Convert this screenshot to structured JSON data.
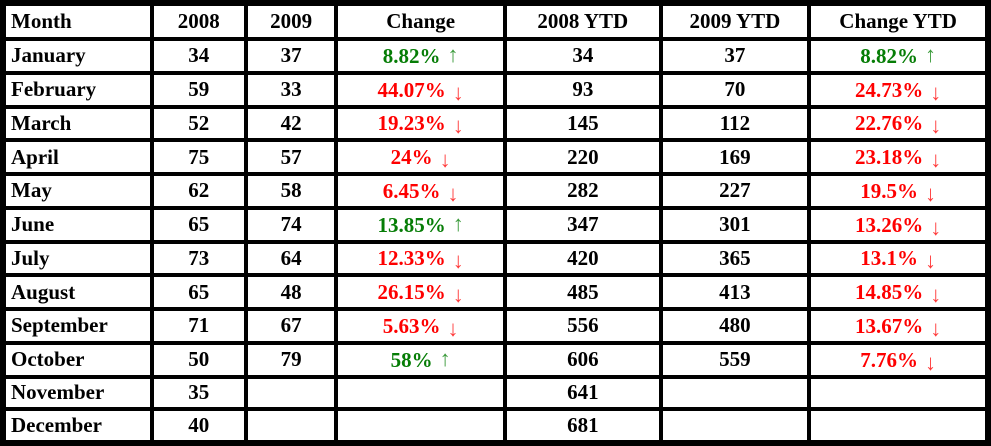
{
  "colors": {
    "border": "#000000",
    "text": "#000000",
    "increase": "#067d06",
    "increase_arrow": "#3c9b3c",
    "decrease": "#fe0000",
    "decrease_arrow": "#ff3b3b"
  },
  "icons": {
    "up_arrow": "↑",
    "down_arrow": "↓"
  },
  "table": {
    "columns": [
      {
        "key": "month",
        "label": "Month"
      },
      {
        "key": "y2008",
        "label": "2008"
      },
      {
        "key": "y2009",
        "label": "2009"
      },
      {
        "key": "change",
        "label": "Change"
      },
      {
        "key": "ytd2008",
        "label": "2008 YTD"
      },
      {
        "key": "ytd2009",
        "label": "2009 YTD"
      },
      {
        "key": "change_ytd",
        "label": "Change YTD"
      }
    ],
    "rows": [
      {
        "month": "January",
        "y2008": "34",
        "y2009": "37",
        "change": {
          "value": "8.82%",
          "direction": "up"
        },
        "ytd2008": "34",
        "ytd2009": "37",
        "change_ytd": {
          "value": "8.82%",
          "direction": "up"
        }
      },
      {
        "month": "February",
        "y2008": "59",
        "y2009": "33",
        "change": {
          "value": "44.07%",
          "direction": "down"
        },
        "ytd2008": "93",
        "ytd2009": "70",
        "change_ytd": {
          "value": "24.73%",
          "direction": "down"
        }
      },
      {
        "month": "March",
        "y2008": "52",
        "y2009": "42",
        "change": {
          "value": "19.23%",
          "direction": "down"
        },
        "ytd2008": "145",
        "ytd2009": "112",
        "change_ytd": {
          "value": "22.76%",
          "direction": "down"
        }
      },
      {
        "month": "April",
        "y2008": "75",
        "y2009": "57",
        "change": {
          "value": "24%",
          "direction": "down"
        },
        "ytd2008": "220",
        "ytd2009": "169",
        "change_ytd": {
          "value": "23.18%",
          "direction": "down"
        }
      },
      {
        "month": "May",
        "y2008": "62",
        "y2009": "58",
        "change": {
          "value": "6.45%",
          "direction": "down"
        },
        "ytd2008": "282",
        "ytd2009": "227",
        "change_ytd": {
          "value": "19.5%",
          "direction": "down"
        }
      },
      {
        "month": "June",
        "y2008": "65",
        "y2009": "74",
        "change": {
          "value": "13.85%",
          "direction": "up"
        },
        "ytd2008": "347",
        "ytd2009": "301",
        "change_ytd": {
          "value": "13.26%",
          "direction": "down"
        }
      },
      {
        "month": "July",
        "y2008": "73",
        "y2009": "64",
        "change": {
          "value": "12.33%",
          "direction": "down"
        },
        "ytd2008": "420",
        "ytd2009": "365",
        "change_ytd": {
          "value": "13.1%",
          "direction": "down"
        }
      },
      {
        "month": "August",
        "y2008": "65",
        "y2009": "48",
        "change": {
          "value": "26.15%",
          "direction": "down"
        },
        "ytd2008": "485",
        "ytd2009": "413",
        "change_ytd": {
          "value": "14.85%",
          "direction": "down"
        }
      },
      {
        "month": "September",
        "y2008": "71",
        "y2009": "67",
        "change": {
          "value": "5.63%",
          "direction": "down"
        },
        "ytd2008": "556",
        "ytd2009": "480",
        "change_ytd": {
          "value": "13.67%",
          "direction": "down"
        }
      },
      {
        "month": "October",
        "y2008": "50",
        "y2009": "79",
        "change": {
          "value": "58%",
          "direction": "up"
        },
        "ytd2008": "606",
        "ytd2009": "559",
        "change_ytd": {
          "value": "7.76%",
          "direction": "down"
        }
      },
      {
        "month": "November",
        "y2008": "35",
        "y2009": "",
        "change": null,
        "ytd2008": "641",
        "ytd2009": "",
        "change_ytd": null
      },
      {
        "month": "December",
        "y2008": "40",
        "y2009": "",
        "change": null,
        "ytd2008": "681",
        "ytd2009": "",
        "change_ytd": null
      }
    ]
  },
  "chart_data": {
    "type": "table",
    "title": "",
    "columns": [
      "Month",
      "2008",
      "2009",
      "Change",
      "2008 YTD",
      "2009 YTD",
      "Change YTD"
    ],
    "categories": [
      "January",
      "February",
      "March",
      "April",
      "May",
      "June",
      "July",
      "August",
      "September",
      "October",
      "November",
      "December"
    ],
    "series": [
      {
        "name": "2008",
        "values": [
          34,
          59,
          52,
          75,
          62,
          65,
          73,
          65,
          71,
          50,
          35,
          40
        ]
      },
      {
        "name": "2009",
        "values": [
          37,
          33,
          42,
          57,
          58,
          74,
          64,
          48,
          67,
          79,
          null,
          null
        ]
      },
      {
        "name": "Change",
        "values": [
          "8.82% up",
          "44.07% down",
          "19.23% down",
          "24% down",
          "6.45% down",
          "13.85% up",
          "12.33% down",
          "26.15% down",
          "5.63% down",
          "58% up",
          null,
          null
        ]
      },
      {
        "name": "2008 YTD",
        "values": [
          34,
          93,
          145,
          220,
          282,
          347,
          420,
          485,
          556,
          606,
          641,
          681
        ]
      },
      {
        "name": "2009 YTD",
        "values": [
          37,
          70,
          112,
          169,
          227,
          301,
          365,
          413,
          480,
          559,
          null,
          null
        ]
      },
      {
        "name": "Change YTD",
        "values": [
          "8.82% up",
          "24.73% down",
          "22.76% down",
          "23.18% down",
          "19.5% down",
          "13.26% down",
          "13.1% down",
          "14.85% down",
          "13.67% down",
          "7.76% down",
          null,
          null
        ]
      }
    ],
    "legend_position": "none",
    "grid": true
  }
}
